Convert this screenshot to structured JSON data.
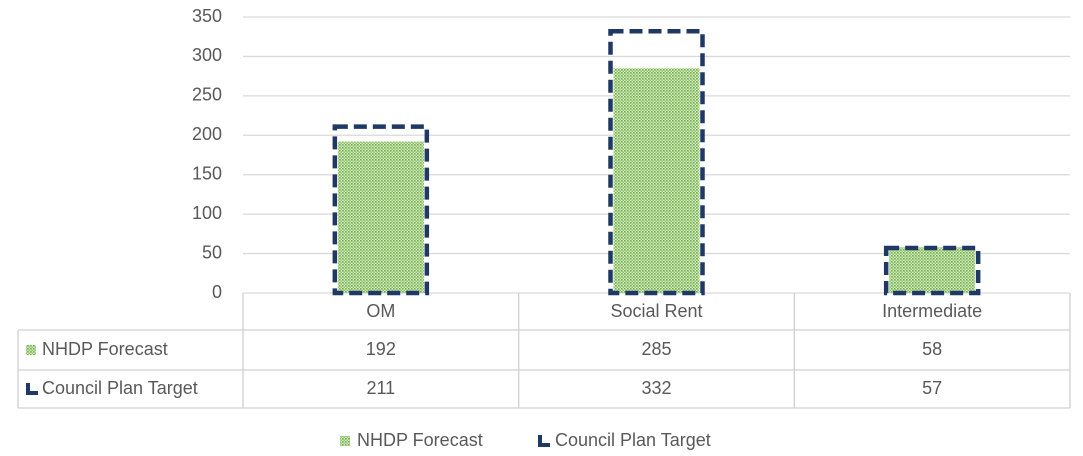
{
  "chart_data": {
    "type": "bar",
    "categories": [
      "OM",
      "Social Rent",
      "Intermediate"
    ],
    "series": [
      {
        "name": "NHDP Forecast",
        "color": "#70ad47",
        "values": [
          192,
          285,
          58
        ]
      },
      {
        "name": "Council Plan Target",
        "color": "#1f3864",
        "values": [
          211,
          332,
          57
        ]
      }
    ],
    "ylim": [
      0,
      350
    ],
    "yticks": [
      0,
      50,
      100,
      150,
      200,
      250,
      300,
      350
    ],
    "grid": true
  }
}
